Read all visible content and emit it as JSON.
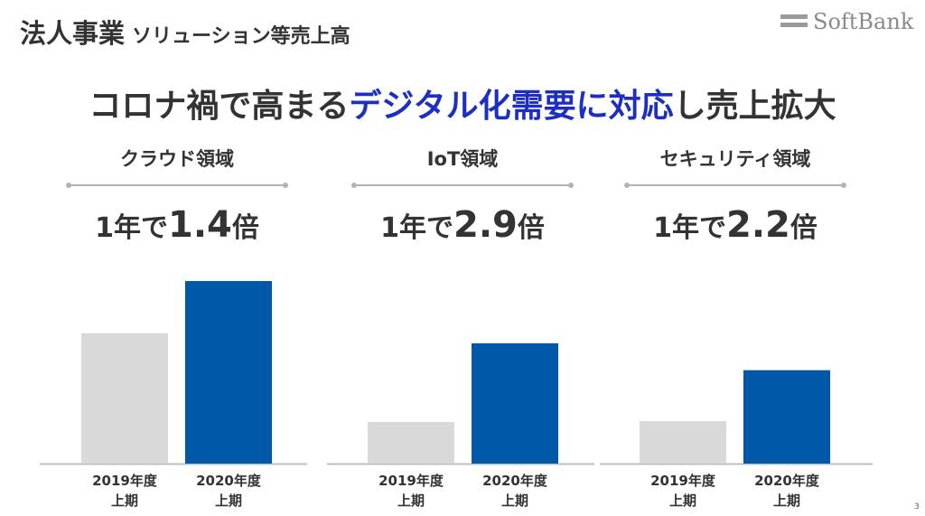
{
  "header": {
    "title_main": "法人事業",
    "title_sub": "ソリューション等売上高"
  },
  "brand": {
    "logo_text": "SoftBank"
  },
  "headline": {
    "part1": "コロナ禍で高まる",
    "part2": "デジタル化需要に対応",
    "part3": "し売上拡大",
    "accent_color": "#1c2fc2"
  },
  "chart_data": [
    {
      "type": "bar",
      "title": "クラウド領域",
      "growth_prefix": "1年で",
      "growth_multiple": "1.4",
      "growth_suffix": "倍",
      "categories": [
        [
          "2019年度",
          "上期"
        ],
        [
          "2020年度",
          "上期"
        ]
      ],
      "values": [
        1.0,
        1.4
      ],
      "colors": [
        "#d9d9d9",
        "#0058a8"
      ],
      "ylim": [
        0,
        1.4
      ]
    },
    {
      "type": "bar",
      "title": "IoT領域",
      "growth_prefix": "1年で",
      "growth_multiple": "2.9",
      "growth_suffix": "倍",
      "categories": [
        [
          "2019年度",
          "上期"
        ],
        [
          "2020年度",
          "上期"
        ]
      ],
      "values": [
        1.0,
        2.9
      ],
      "colors": [
        "#d9d9d9",
        "#0058a8"
      ],
      "ylim": [
        0,
        4.4
      ]
    },
    {
      "type": "bar",
      "title": "セキュリティ領域",
      "growth_prefix": "1年で",
      "growth_multiple": "2.2",
      "growth_suffix": "倍",
      "categories": [
        [
          "2019年度",
          "上期"
        ],
        [
          "2020年度",
          "上期"
        ]
      ],
      "values": [
        1.0,
        2.2
      ],
      "colors": [
        "#d9d9d9",
        "#0058a8"
      ],
      "ylim": [
        0,
        4.3
      ]
    }
  ],
  "footnote": "3"
}
